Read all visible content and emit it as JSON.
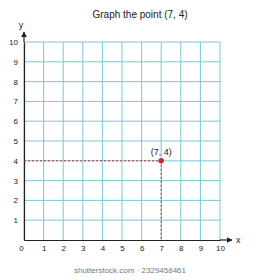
{
  "chart_data": {
    "type": "scatter",
    "title": "Graph the point (7, 4)",
    "x_label": "x",
    "y_label": "y",
    "x": [
      7
    ],
    "values": [
      4
    ],
    "value_labels": [
      "(7, 4)"
    ],
    "color": "#d0262b",
    "marker": "circle",
    "line_style": "dotted",
    "xlim": [
      0,
      10
    ],
    "ylim": [
      0,
      10
    ],
    "xticks": [
      0,
      1,
      2,
      3,
      4,
      5,
      6,
      7,
      8,
      9,
      10
    ],
    "yticks": [
      1,
      2,
      3,
      4,
      5,
      6,
      7,
      8,
      9,
      10
    ],
    "grid": true,
    "footer": "shutterstock.com · 2329458461"
  }
}
